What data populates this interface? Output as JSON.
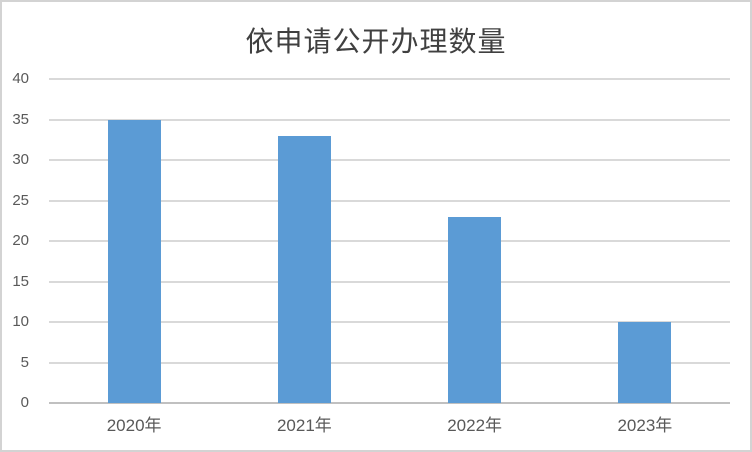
{
  "chart_data": {
    "type": "bar",
    "title": "依申请公开办理数量",
    "categories": [
      "2020年",
      "2021年",
      "2022年",
      "2023年"
    ],
    "values": [
      35,
      33,
      23,
      10
    ],
    "xlabel": "",
    "ylabel": "",
    "ylim": [
      0,
      40
    ],
    "ytick_interval": 5,
    "ytick_labels": [
      "0",
      "5",
      "10",
      "15",
      "20",
      "25",
      "30",
      "35",
      "40"
    ],
    "grid": true,
    "legend": "none",
    "bar_color": "#5b9bd5",
    "colors": {
      "bar_fill": "#5b9bd5",
      "gridline": "#d9d9d9",
      "axis_line": "#c0c0c0",
      "tick_label": "#595959",
      "title": "#404040",
      "frame_border": "#d3d3d3",
      "background": "#ffffff"
    }
  }
}
